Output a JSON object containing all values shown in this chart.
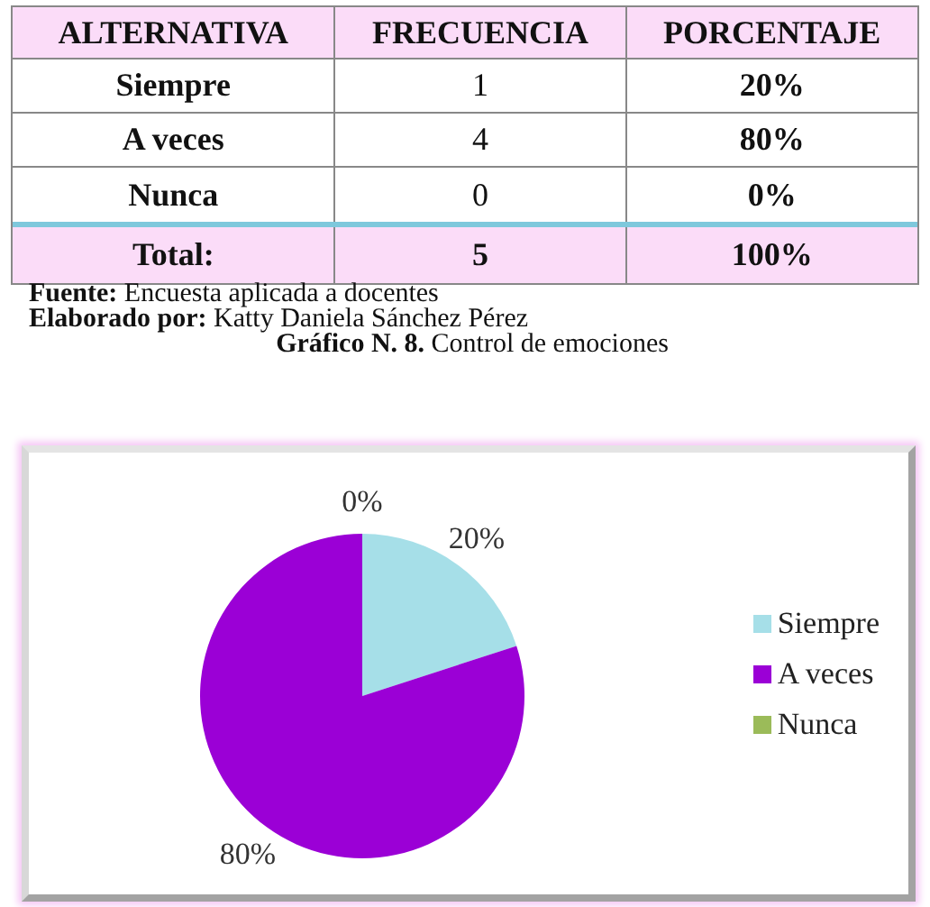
{
  "chart_data": [
    {
      "type": "heatmap",
      "ylabel": "ALTERNATIVA",
      "categories": [
        "FRECUENCIA",
        "PORCENTAJE"
      ],
      "y_categories": [
        "Siempre",
        "A veces",
        "Nunca",
        "Total:"
      ],
      "cells": [
        [
          1,
          20
        ],
        [
          4,
          80
        ],
        [
          0,
          0
        ],
        [
          5,
          100
        ]
      ],
      "cell_labels": [
        [
          "1",
          "20%"
        ],
        [
          "4",
          "80%"
        ],
        [
          "0",
          "0%"
        ],
        [
          "5",
          "100%"
        ]
      ],
      "annotations": [
        "Fuente: Encuesta aplicada a docentes",
        "Elaborado por: Katty Daniela Sánchez Pérez"
      ]
    },
    {
      "type": "pie",
      "title": "Gráfico N. 8. Control de emociones",
      "categories": [
        "Siempre",
        "A veces",
        "Nunca"
      ],
      "values": [
        20,
        80,
        0
      ],
      "colors": [
        "#a6dfe8",
        "#9b00d6",
        "#9bbb59"
      ],
      "value_labels": [
        "20%",
        "80%",
        "0%"
      ],
      "legend": "right"
    }
  ]
}
